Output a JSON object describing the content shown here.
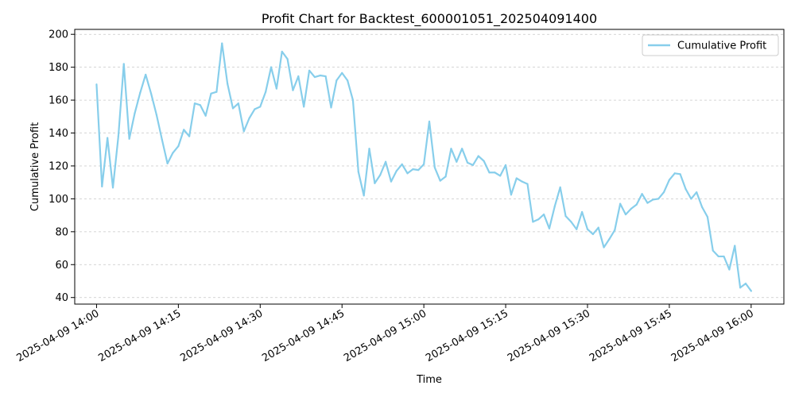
{
  "chart_data": {
    "type": "line",
    "title": "Profit Chart for Backtest_600001051_202504091400",
    "xlabel": "Time",
    "ylabel": "Cumulative Profit",
    "x_start": "2025-04-09 14:00",
    "xlim": [
      "2025-04-09 13:56",
      "2025-04-09 16:06"
    ],
    "ylim": [
      36,
      203
    ],
    "x_ticks": [
      "2025-04-09 14:00",
      "2025-04-09 14:15",
      "2025-04-09 14:30",
      "2025-04-09 14:45",
      "2025-04-09 15:00",
      "2025-04-09 15:15",
      "2025-04-09 15:30",
      "2025-04-09 15:45",
      "2025-04-09 16:00"
    ],
    "y_ticks": [
      40,
      60,
      80,
      100,
      120,
      140,
      160,
      180,
      200
    ],
    "grid": "y-dashed",
    "legend": "top-right",
    "series": [
      {
        "name": "Cumulative Profit",
        "color": "#87ceeb",
        "x_step_minutes": 1,
        "values": [
          169.5,
          107.5,
          137.0,
          106.8,
          138.0,
          182.0,
          136.5,
          152.0,
          164.5,
          175.5,
          164.0,
          151.0,
          136.0,
          121.5,
          128.0,
          132.0,
          142.0,
          138.0,
          158.0,
          157.0,
          150.5,
          164.0,
          165.0,
          194.5,
          170.0,
          155.0,
          158.0,
          141.0,
          149.0,
          154.5,
          156.0,
          165.0,
          180.0,
          167.0,
          189.5,
          185.0,
          166.0,
          174.5,
          156.0,
          178.0,
          174.0,
          175.0,
          174.5,
          155.5,
          172.0,
          176.5,
          172.0,
          160.0,
          116.5,
          102.0,
          130.5,
          109.5,
          114.5,
          122.5,
          110.5,
          117.0,
          121.0,
          115.5,
          118.0,
          117.5,
          121.0,
          147.0,
          119.0,
          111.0,
          113.5,
          130.5,
          122.5,
          130.5,
          122.0,
          120.5,
          126.0,
          123.0,
          116.0,
          116.0,
          114.0,
          120.5,
          102.5,
          112.5,
          110.5,
          109.0,
          86.0,
          87.5,
          90.5,
          82.0,
          95.5,
          107.0,
          89.5,
          86.0,
          81.5,
          92.0,
          81.5,
          78.5,
          82.5,
          70.5,
          75.5,
          81.0,
          97.0,
          90.5,
          94.0,
          96.5,
          103.0,
          97.5,
          99.5,
          100.0,
          104.0,
          111.5,
          115.5,
          115.0,
          106.0,
          100.0,
          104.0,
          95.0,
          89.0,
          68.5,
          65.0,
          65.0,
          57.0,
          71.5,
          46.0,
          48.5,
          44.0
        ]
      }
    ]
  }
}
